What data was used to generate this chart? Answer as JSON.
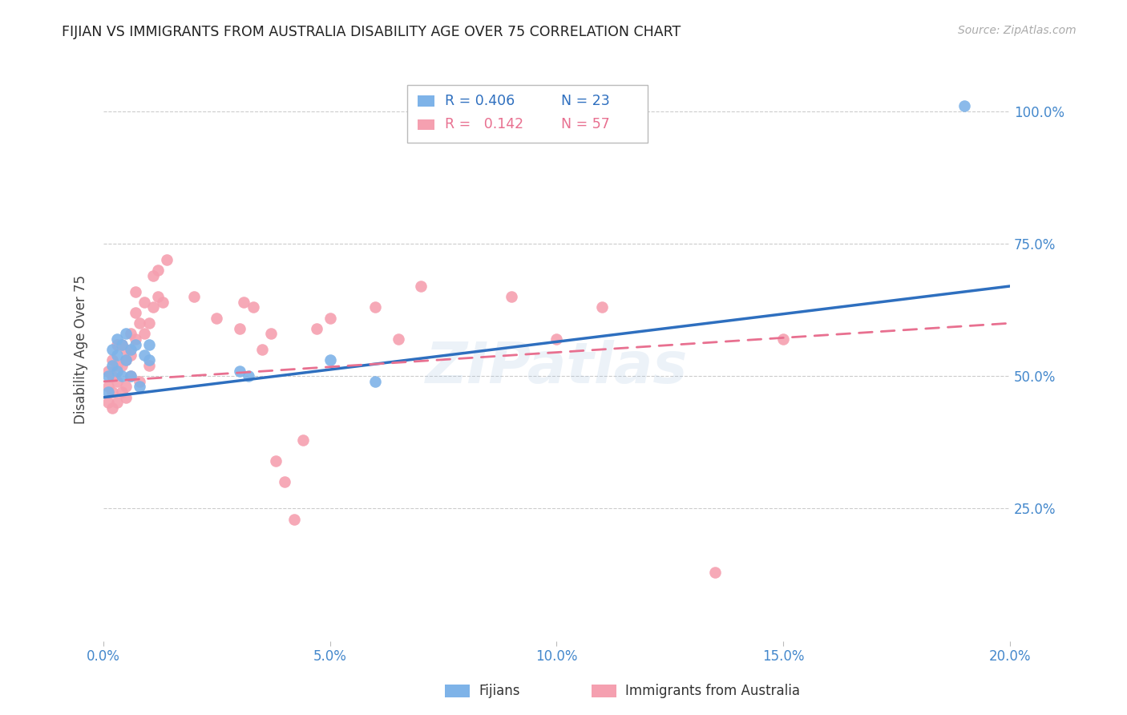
{
  "title": "FIJIAN VS IMMIGRANTS FROM AUSTRALIA DISABILITY AGE OVER 75 CORRELATION CHART",
  "source": "Source: ZipAtlas.com",
  "xlabel_label": "Fijians",
  "xlabel_label2": "Immigrants from Australia",
  "ylabel": "Disability Age Over 75",
  "xlim": [
    0.0,
    0.2
  ],
  "ylim": [
    0.0,
    1.1
  ],
  "xticks": [
    0.0,
    0.05,
    0.1,
    0.15,
    0.2
  ],
  "xtick_labels": [
    "0.0%",
    "5.0%",
    "10.0%",
    "15.0%",
    "20.0%"
  ],
  "ytick_positions": [
    0.25,
    0.5,
    0.75,
    1.0
  ],
  "ytick_labels": [
    "25.0%",
    "50.0%",
    "75.0%",
    "100.0%"
  ],
  "blue_color": "#7EB3E8",
  "pink_color": "#F5A0B0",
  "line_blue": "#2E6FBF",
  "line_pink": "#E87090",
  "legend_R_blue": "0.406",
  "legend_N_blue": "23",
  "legend_R_pink": "0.142",
  "legend_N_pink": "57",
  "fijian_x": [
    0.001,
    0.001,
    0.002,
    0.002,
    0.003,
    0.003,
    0.003,
    0.004,
    0.004,
    0.005,
    0.005,
    0.006,
    0.006,
    0.007,
    0.008,
    0.009,
    0.01,
    0.01,
    0.03,
    0.032,
    0.05,
    0.06,
    0.19
  ],
  "fijian_y": [
    0.47,
    0.5,
    0.52,
    0.55,
    0.51,
    0.54,
    0.57,
    0.5,
    0.56,
    0.53,
    0.58,
    0.5,
    0.55,
    0.56,
    0.48,
    0.54,
    0.53,
    0.56,
    0.51,
    0.5,
    0.53,
    0.49,
    1.01
  ],
  "australia_x": [
    0.001,
    0.001,
    0.001,
    0.002,
    0.002,
    0.002,
    0.002,
    0.003,
    0.003,
    0.003,
    0.003,
    0.004,
    0.004,
    0.004,
    0.005,
    0.005,
    0.005,
    0.005,
    0.006,
    0.006,
    0.006,
    0.007,
    0.007,
    0.007,
    0.008,
    0.008,
    0.009,
    0.009,
    0.01,
    0.01,
    0.011,
    0.011,
    0.012,
    0.012,
    0.013,
    0.014,
    0.02,
    0.025,
    0.03,
    0.031,
    0.033,
    0.035,
    0.037,
    0.038,
    0.04,
    0.042,
    0.044,
    0.047,
    0.05,
    0.06,
    0.065,
    0.07,
    0.09,
    0.1,
    0.11,
    0.135,
    0.15
  ],
  "australia_y": [
    0.48,
    0.51,
    0.45,
    0.5,
    0.47,
    0.44,
    0.53,
    0.52,
    0.49,
    0.56,
    0.45,
    0.47,
    0.52,
    0.56,
    0.48,
    0.53,
    0.46,
    0.55,
    0.5,
    0.54,
    0.58,
    0.62,
    0.57,
    0.66,
    0.49,
    0.6,
    0.58,
    0.64,
    0.52,
    0.6,
    0.63,
    0.69,
    0.65,
    0.7,
    0.64,
    0.72,
    0.65,
    0.61,
    0.59,
    0.64,
    0.63,
    0.55,
    0.58,
    0.34,
    0.3,
    0.23,
    0.38,
    0.59,
    0.61,
    0.63,
    0.57,
    0.67,
    0.65,
    0.57,
    0.63,
    0.13,
    0.57
  ],
  "watermark": "ZIPatlas",
  "background_color": "#FFFFFF",
  "grid_color": "#CCCCCC",
  "blue_line_x0": 0.0,
  "blue_line_y0": 0.46,
  "blue_line_x1": 0.2,
  "blue_line_y1": 0.67,
  "pink_line_x0": 0.0,
  "pink_line_y0": 0.49,
  "pink_line_x1": 0.2,
  "pink_line_y1": 0.6
}
